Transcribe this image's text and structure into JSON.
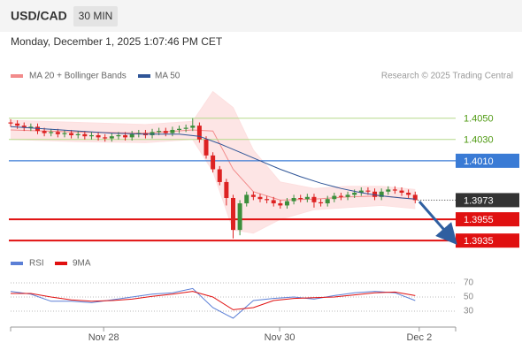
{
  "chart_data": {
    "type": "candlestick",
    "title": "USD/CAD",
    "timeframe": "30 MIN",
    "subtitle": "Monday, December 1, 2025 1:07:46 PM CET",
    "source": "Research © 2025 Trading Central",
    "xlim": [
      0,
      66
    ],
    "ylim": [
      1.3926,
      1.4078
    ],
    "xticks": [
      {
        "value": 13.8,
        "label": "Nov 28"
      },
      {
        "value": 39.9,
        "label": "Nov 30"
      },
      {
        "value": 60.6,
        "label": "Dec 2"
      }
    ],
    "up_color": "#3c8f3c",
    "down_color": "#d22",
    "open": [
      1.4046,
      1.4045,
      1.4043,
      1.4041,
      1.4042,
      1.4038,
      1.4036,
      1.4037,
      1.4035,
      1.4036,
      1.4034,
      1.4035,
      1.4033,
      1.4034,
      1.4032,
      1.4031,
      1.4033,
      1.4034,
      1.4032,
      1.4035,
      1.4036,
      1.4034,
      1.4037,
      1.4038,
      1.4036,
      1.4039,
      1.404,
      1.4041,
      1.4043,
      1.403,
      1.4015,
      1.4002,
      1.399,
      1.3975,
      1.3945,
      1.397,
      1.3978,
      1.3976,
      1.3974,
      1.3973,
      1.397,
      1.3968,
      1.3972,
      1.3975,
      1.3974,
      1.3976,
      1.3971,
      1.397,
      1.3974,
      1.3977,
      1.3976,
      1.3978,
      1.398,
      1.3982,
      1.3981,
      1.3976,
      1.3981,
      1.3983,
      1.3982,
      1.398,
      1.3978
    ],
    "high": [
      1.4049,
      1.4048,
      1.4046,
      1.4045,
      1.4045,
      1.4041,
      1.404,
      1.404,
      1.4039,
      1.4039,
      1.4038,
      1.4038,
      1.4037,
      1.4037,
      1.4035,
      1.4036,
      1.4037,
      1.4037,
      1.4038,
      1.4039,
      1.4039,
      1.404,
      1.4041,
      1.4041,
      1.4042,
      1.4043,
      1.4044,
      1.405,
      1.4046,
      1.4033,
      1.4018,
      1.4005,
      1.3993,
      1.3978,
      1.3973,
      1.3981,
      1.3981,
      1.3979,
      1.3977,
      1.3976,
      1.3973,
      1.3975,
      1.3978,
      1.3978,
      1.3979,
      1.3979,
      1.3974,
      1.3977,
      1.398,
      1.398,
      1.3981,
      1.3983,
      1.3985,
      1.3985,
      1.3984,
      1.3984,
      1.3986,
      1.3986,
      1.3985,
      1.3983,
      1.3981
    ],
    "low": [
      1.4042,
      1.404,
      1.4038,
      1.4038,
      1.4035,
      1.4033,
      1.4033,
      1.4032,
      1.4032,
      1.4031,
      1.4031,
      1.403,
      1.403,
      1.4029,
      1.4028,
      1.4028,
      1.403,
      1.4029,
      1.4029,
      1.4032,
      1.4031,
      1.4031,
      1.4034,
      1.4033,
      1.4033,
      1.4036,
      1.4037,
      1.4038,
      1.4027,
      1.4012,
      1.3999,
      1.3987,
      1.3968,
      1.3937,
      1.394,
      1.3967,
      1.3973,
      1.3971,
      1.397,
      1.3967,
      1.3965,
      1.3965,
      1.3969,
      1.3971,
      1.3971,
      1.3966,
      1.3967,
      1.3967,
      1.3971,
      1.3973,
      1.3973,
      1.3975,
      1.3977,
      1.3978,
      1.3973,
      1.3973,
      1.3978,
      1.3979,
      1.3977,
      1.3975,
      1.397
    ],
    "close": [
      1.4045,
      1.4043,
      1.4041,
      1.4042,
      1.4038,
      1.4036,
      1.4037,
      1.4035,
      1.4036,
      1.4034,
      1.4035,
      1.4033,
      1.4034,
      1.4032,
      1.4031,
      1.4033,
      1.4034,
      1.4032,
      1.4035,
      1.4036,
      1.4034,
      1.4037,
      1.4038,
      1.4036,
      1.4039,
      1.404,
      1.4041,
      1.4043,
      1.403,
      1.4015,
      1.4002,
      1.399,
      1.3975,
      1.3945,
      1.397,
      1.3978,
      1.3976,
      1.3974,
      1.3973,
      1.397,
      1.3968,
      1.3972,
      1.3975,
      1.3974,
      1.3976,
      1.3971,
      1.397,
      1.3974,
      1.3977,
      1.3976,
      1.3978,
      1.398,
      1.3982,
      1.3981,
      1.3976,
      1.3981,
      1.3983,
      1.3982,
      1.398,
      1.3978,
      1.3973
    ],
    "bollinger": {
      "name": "MA 20 + Bollinger Bands",
      "color": "#f28b8b",
      "band_color": "#fde0e0",
      "x": [
        0,
        10,
        20,
        27,
        30,
        33,
        36,
        40,
        45,
        50,
        55,
        60
      ],
      "upper": [
        1.4048,
        1.4046,
        1.4044,
        1.4047,
        1.4075,
        1.406,
        1.402,
        1.399,
        1.3984,
        1.3986,
        1.3986,
        1.3983
      ],
      "middle": [
        1.4039,
        1.4037,
        1.4036,
        1.4039,
        1.4038,
        1.4002,
        1.3981,
        1.3973,
        1.3974,
        1.3976,
        1.3977,
        1.3974
      ],
      "lower": [
        1.403,
        1.4028,
        1.4027,
        1.403,
        1.4,
        1.3945,
        1.3942,
        1.3955,
        1.3964,
        1.3966,
        1.3968,
        1.3965
      ]
    },
    "ma50": {
      "name": "MA 50",
      "color": "#2f5597",
      "x": [
        0,
        5,
        10,
        15,
        20,
        25,
        28,
        31,
        34,
        37,
        40,
        43,
        46,
        49,
        52,
        55,
        58,
        60
      ],
      "values": [
        1.4042,
        1.404,
        1.4038,
        1.4036,
        1.4035,
        1.4035,
        1.4033,
        1.4026,
        1.4018,
        1.401,
        1.4002,
        1.3995,
        1.3989,
        1.3984,
        1.398,
        1.3977,
        1.3975,
        1.3974
      ]
    },
    "levels": [
      {
        "value": 1.405,
        "label": "1.4050",
        "color": "#b5d98a",
        "text_color": "#4f9a12",
        "style": "text"
      },
      {
        "value": 1.403,
        "label": "1.4030",
        "color": "#b5d98a",
        "text_color": "#4f9a12",
        "style": "text"
      },
      {
        "value": 1.401,
        "label": "1.4010",
        "color": "#3a7bd5",
        "text_color": "#ffffff",
        "style": "box"
      },
      {
        "value": 1.3973,
        "label": "1.3973",
        "color": "#333333",
        "text_color": "#ffffff",
        "style": "last"
      },
      {
        "value": 1.3955,
        "label": "1.3955",
        "color": "#e01010",
        "text_color": "#ffffff",
        "style": "box"
      },
      {
        "value": 1.3935,
        "label": "1.3935",
        "color": "#e01010",
        "text_color": "#ffffff",
        "style": "box"
      }
    ],
    "rsi": {
      "name": "RSI",
      "color": "#5b7fd6",
      "ylim": [
        7.5,
        80
      ],
      "yticks": [
        30,
        50,
        70
      ],
      "x": [
        0,
        3,
        6,
        9,
        12,
        15,
        18,
        21,
        24,
        27,
        30,
        33,
        36,
        39,
        42,
        45,
        48,
        51,
        54,
        57,
        60
      ],
      "values": [
        58,
        54,
        44,
        44,
        42,
        46,
        50,
        54,
        56,
        62,
        35,
        20,
        45,
        48,
        50,
        47,
        52,
        56,
        58,
        56,
        45
      ],
      "ma": {
        "name": "9MA",
        "color": "#e01010",
        "values": [
          55,
          55,
          50,
          46,
          44,
          45,
          47,
          51,
          54,
          58,
          50,
          32,
          35,
          45,
          48,
          49,
          50,
          53,
          56,
          57,
          52
        ]
      }
    }
  }
}
